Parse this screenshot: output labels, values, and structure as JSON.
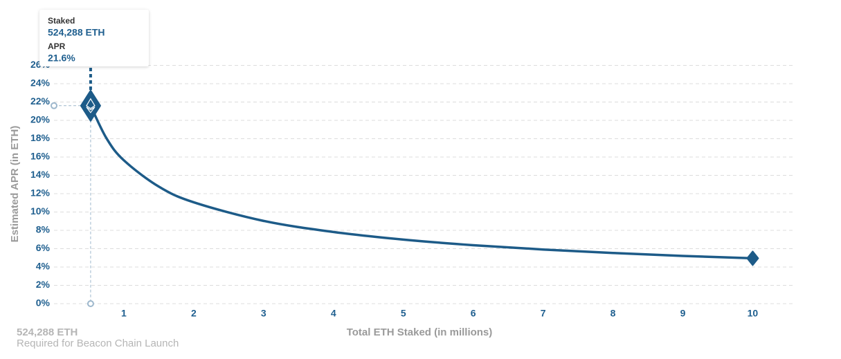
{
  "chart_data": {
    "type": "line",
    "y_axis_label": "Estimated APR (in ETH)",
    "x_axis_label": "Total ETH Staked  (in millions)",
    "x": [
      0.524288,
      0.75,
      1,
      1.5,
      2,
      3,
      4,
      5,
      6,
      7,
      8,
      9,
      10
    ],
    "series": [
      {
        "color": "#1d5b88",
        "values": [
          21.6,
          18.06,
          15.64,
          12.77,
          11.06,
          9.03,
          7.82,
          6.99,
          6.38,
          5.91,
          5.53,
          5.21,
          4.95
        ]
      }
    ],
    "xlim": [
      0,
      10.6
    ],
    "xticks": [
      1,
      2,
      3,
      4,
      5,
      6,
      7,
      8,
      9,
      10
    ],
    "ylim": [
      0,
      26
    ],
    "yticks": [
      {
        "value": 0,
        "label": "0%"
      },
      {
        "value": 2,
        "label": "2%"
      },
      {
        "value": 4,
        "label": "4%"
      },
      {
        "value": 6,
        "label": "6%"
      },
      {
        "value": 8,
        "label": "8%"
      },
      {
        "value": 10,
        "label": "10%"
      },
      {
        "value": 12,
        "label": "12%"
      },
      {
        "value": 14,
        "label": "14%"
      },
      {
        "value": 16,
        "label": "16%"
      },
      {
        "value": 18,
        "label": "18%"
      },
      {
        "value": 20,
        "label": "20%"
      },
      {
        "value": 22,
        "label": "22%"
      },
      {
        "value": 24,
        "label": "24%"
      },
      {
        "value": 26,
        "label": "26%"
      }
    ],
    "grid": true,
    "tooltip": {
      "staked_label": "Staked",
      "staked_value": "524,288 ETH",
      "apr_label": "APR",
      "apr_value": "21.6%"
    },
    "footnote": {
      "amount": "524,288 ETH",
      "caption": "Required for Beacon Chain Launch"
    }
  }
}
